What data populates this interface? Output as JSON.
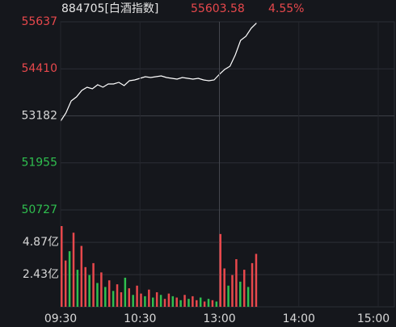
{
  "chart_data": [
    {
      "type": "line",
      "title": "884705[白酒指数]",
      "last_price": 55603.58,
      "change": {
        "value": 4.55,
        "label": "4.55%"
      },
      "color": "#ffffff",
      "x": [
        0,
        4,
        8,
        12,
        16,
        20,
        24,
        28,
        32,
        36,
        40,
        44,
        48,
        52,
        56,
        60,
        64,
        68,
        72,
        76,
        80,
        84,
        88,
        92,
        96,
        100,
        104,
        108,
        112,
        116,
        120,
        124,
        128,
        132,
        136,
        140,
        144,
        148
      ],
      "values": [
        53045,
        53256,
        53572,
        53677,
        53846,
        53930,
        53888,
        53994,
        53930,
        54015,
        54015,
        54057,
        53973,
        54099,
        54120,
        54162,
        54204,
        54183,
        54204,
        54225,
        54183,
        54162,
        54141,
        54183,
        54162,
        54141,
        54162,
        54120,
        54099,
        54120,
        54267,
        54394,
        54478,
        54773,
        55152,
        55258,
        55468,
        55603.58
      ],
      "xlim": [
        0,
        240
      ],
      "ylim": [
        50727,
        55637
      ],
      "yticks": [
        50727,
        51955,
        53182,
        54410,
        55637
      ],
      "ytick_colors": [
        "#2fbf4f",
        "#2fbf4f",
        "#d8d8d8",
        "#e8484c",
        "#e8484c"
      ]
    },
    {
      "type": "bar",
      "x": [
        0,
        3,
        6,
        9,
        12,
        15,
        18,
        21,
        24,
        27,
        30,
        33,
        36,
        39,
        42,
        45,
        48,
        51,
        54,
        57,
        60,
        63,
        66,
        69,
        72,
        75,
        78,
        81,
        84,
        87,
        90,
        93,
        96,
        99,
        102,
        105,
        108,
        111,
        114,
        117,
        120,
        123,
        126,
        129,
        132,
        135,
        138,
        141,
        144,
        147
      ],
      "values": [
        6.1,
        3.5,
        4.2,
        5.6,
        2.8,
        4.6,
        3.0,
        2.4,
        3.3,
        1.8,
        2.6,
        1.5,
        2.0,
        1.2,
        1.7,
        1.1,
        2.2,
        1.4,
        0.9,
        1.6,
        1.0,
        0.8,
        1.3,
        0.7,
        1.1,
        0.9,
        0.6,
        1.0,
        0.8,
        0.7,
        0.5,
        0.9,
        0.6,
        0.8,
        0.5,
        0.7,
        0.4,
        0.6,
        0.5,
        0.4,
        5.5,
        2.9,
        1.6,
        2.4,
        3.6,
        1.9,
        2.8,
        1.5,
        3.3,
        4.0
      ],
      "colors": [
        "#e8484c",
        "#e8484c",
        "#2fbf4f",
        "#e8484c",
        "#2fbf4f",
        "#e8484c",
        "#e8484c",
        "#2fbf4f",
        "#e8484c",
        "#2fbf4f",
        "#e8484c",
        "#2fbf4f",
        "#e8484c",
        "#2fbf4f",
        "#e8484c",
        "#e8484c",
        "#2fbf4f",
        "#e8484c",
        "#2fbf4f",
        "#e8484c",
        "#e8484c",
        "#2fbf4f",
        "#e8484c",
        "#2fbf4f",
        "#e8484c",
        "#2fbf4f",
        "#e8484c",
        "#e8484c",
        "#2fbf4f",
        "#e8484c",
        "#2fbf4f",
        "#e8484c",
        "#2fbf4f",
        "#e8484c",
        "#e8484c",
        "#2fbf4f",
        "#e8484c",
        "#2fbf4f",
        "#e8484c",
        "#2fbf4f",
        "#e8484c",
        "#e8484c",
        "#2fbf4f",
        "#e8484c",
        "#e8484c",
        "#2fbf4f",
        "#e8484c",
        "#2fbf4f",
        "#e8484c",
        "#e8484c"
      ],
      "xlim": [
        0,
        240
      ],
      "xticks": [
        {
          "value": 0,
          "label": "09:30"
        },
        {
          "value": 60,
          "label": "10:30"
        },
        {
          "value": 120,
          "label": "13:00"
        },
        {
          "value": 180,
          "label": "14:00"
        },
        {
          "value": 240,
          "label": "15:00"
        }
      ],
      "ylim": [
        0,
        7.32
      ],
      "yticks": [
        {
          "value": 2.43,
          "label": "2.43亿"
        },
        {
          "value": 4.87,
          "label": "4.87亿"
        }
      ],
      "ytick_color": "#d8d8d8"
    }
  ]
}
